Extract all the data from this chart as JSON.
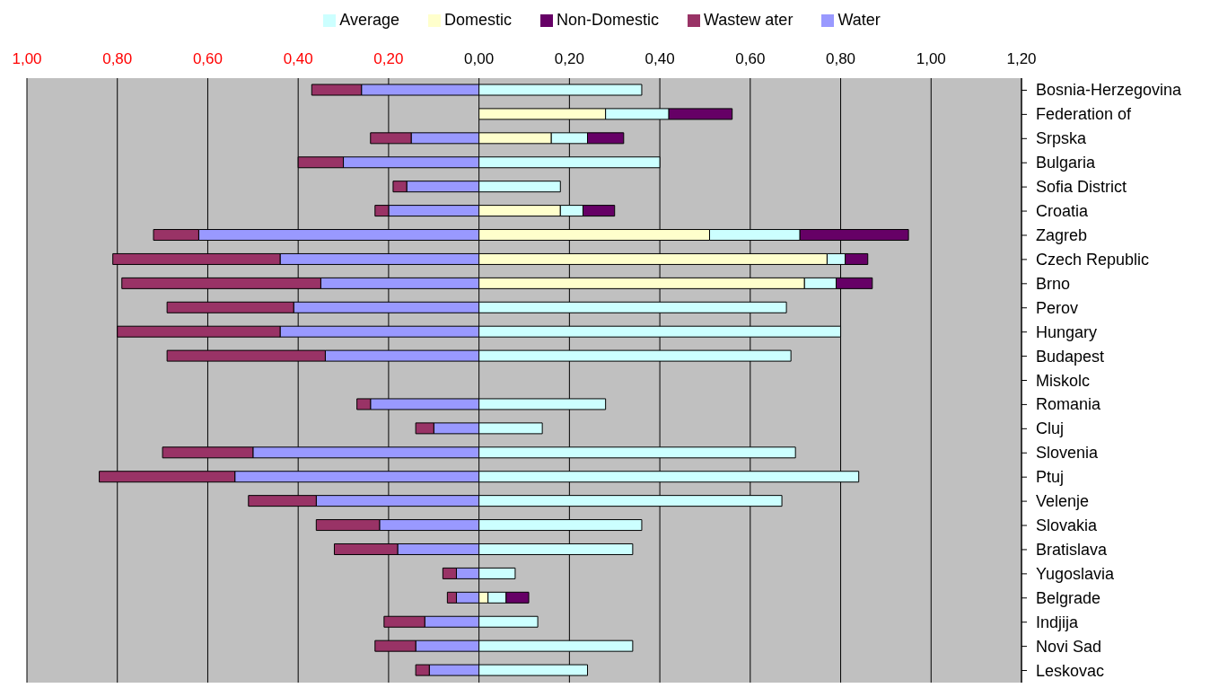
{
  "chart_data": {
    "type": "bar",
    "orientation": "horizontal",
    "stacked": true,
    "grid": "x",
    "legend": "top",
    "categories": [
      "Bosnia-Herzegovina",
      "Federation of",
      "Srpska",
      "Bulgaria",
      "Sofia District",
      "Croatia",
      "Zagreb",
      "Czech Republic",
      "Brno",
      "Perov",
      "Hungary",
      "Budapest",
      "Miskolc",
      "Romania",
      "Cluj",
      "Slovenia",
      "Ptuj",
      "Velenje",
      "Slovakia",
      "Bratislava",
      "Yugoslavia",
      "Belgrade",
      "Indjija",
      "Novi Sad",
      "Leskovac"
    ],
    "xlim": [
      -1,
      1.2
    ],
    "xticks": [
      {
        "value": -1,
        "label": "1,00"
      },
      {
        "value": -0.8,
        "label": "0,80"
      },
      {
        "value": -0.6,
        "label": "0,60"
      },
      {
        "value": -0.4,
        "label": "0,40"
      },
      {
        "value": -0.2,
        "label": "0,20"
      },
      {
        "value": 0,
        "label": "0,00"
      },
      {
        "value": 0.2,
        "label": "0,20"
      },
      {
        "value": 0.4,
        "label": "0,40"
      },
      {
        "value": 0.6,
        "label": "0,60"
      },
      {
        "value": 0.8,
        "label": "0,80"
      },
      {
        "value": 1,
        "label": "1,00"
      },
      {
        "value": 1.2,
        "label": "1,20"
      }
    ],
    "series": [
      {
        "name": "Water",
        "color": "#9999ff",
        "values": [
          -0.26,
          null,
          -0.15,
          -0.3,
          -0.16,
          -0.2,
          -0.62,
          -0.44,
          -0.35,
          -0.41,
          -0.44,
          -0.34,
          null,
          -0.24,
          -0.1,
          -0.5,
          -0.54,
          -0.36,
          -0.22,
          -0.18,
          -0.05,
          -0.05,
          -0.12,
          -0.14,
          -0.11
        ]
      },
      {
        "name": "Wastew ater",
        "color": "#993366",
        "values": [
          -0.11,
          null,
          -0.09,
          -0.1,
          -0.03,
          -0.03,
          -0.1,
          -0.37,
          -0.44,
          -0.28,
          -0.36,
          -0.35,
          null,
          -0.03,
          -0.04,
          -0.2,
          -0.3,
          -0.15,
          -0.14,
          -0.14,
          -0.03,
          -0.02,
          -0.09,
          -0.09,
          -0.03
        ]
      },
      {
        "name": "Domestic",
        "color": "#ffffcc",
        "values": [
          null,
          0.28,
          0.16,
          null,
          null,
          0.18,
          0.51,
          0.77,
          0.72,
          null,
          null,
          null,
          null,
          null,
          null,
          null,
          null,
          null,
          null,
          null,
          null,
          0.02,
          null,
          null,
          null
        ]
      },
      {
        "name": "Average",
        "color": "#ccffff",
        "values": [
          0.36,
          0.14,
          0.08,
          0.4,
          0.18,
          0.05,
          0.2,
          0.04,
          0.07,
          0.68,
          0.8,
          0.69,
          null,
          0.28,
          0.14,
          0.7,
          0.84,
          0.67,
          0.36,
          0.34,
          0.08,
          0.04,
          0.13,
          0.34,
          0.24
        ]
      },
      {
        "name": "Non-Domestic",
        "color": "#660066",
        "values": [
          null,
          0.14,
          0.08,
          null,
          null,
          0.07,
          0.24,
          0.05,
          0.08,
          null,
          null,
          null,
          null,
          null,
          null,
          null,
          null,
          null,
          null,
          null,
          null,
          0.05,
          null,
          null,
          null
        ]
      }
    ]
  }
}
